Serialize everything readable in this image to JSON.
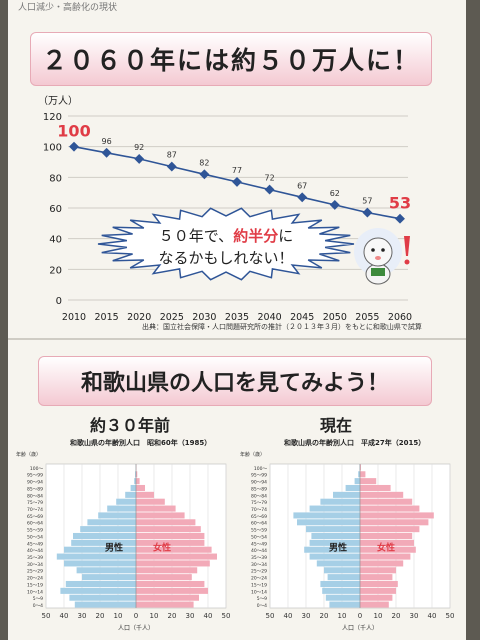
{
  "header_scrap": "人口減少・高齢化の現状",
  "title": "２０６０年には約５０万人に！",
  "callout": {
    "line1": "５０年で、",
    "highlight": "約半分",
    "line1_end": "に",
    "line2": "なるかもしれない！"
  },
  "source": "出典：国立社会保障・人口問題研究所の推計（２０１３年３月）をもとに和歌山県で試算",
  "title2": "和歌山県の人口を見てみよう！",
  "subtitle_left": "約３０年前",
  "subtitle_right": "現在",
  "colors": {
    "line": "#2f5597",
    "highlight": "#e03c46",
    "male": "#a6cfe6",
    "female": "#f2aab8"
  },
  "chart_data": [
    {
      "type": "line",
      "ylabel": "（万人）",
      "ylim": [
        0,
        120
      ],
      "yticks": [
        0,
        20,
        40,
        60,
        80,
        100,
        120
      ],
      "x": [
        2010,
        2015,
        2020,
        2025,
        2030,
        2035,
        2040,
        2045,
        2050,
        2055,
        2060
      ],
      "series": [
        {
          "values": [
            100,
            96,
            92,
            87,
            82,
            77,
            72,
            67,
            62,
            57,
            53
          ]
        }
      ],
      "grid": true
    },
    {
      "type": "bar",
      "title": "和歌山県の年齢別人口　昭和60年（1985）",
      "ylabel": "年齢（歳）",
      "xlabel": "人口（千人）",
      "xlim": [
        -50,
        50
      ],
      "xticks": [
        50,
        40,
        30,
        20,
        10,
        0,
        10,
        20,
        30,
        40,
        50
      ],
      "categories": [
        "0～4",
        "5～9",
        "10～14",
        "15～19",
        "20～24",
        "25～29",
        "30～34",
        "35～39",
        "40～44",
        "45～49",
        "50～54",
        "55～59",
        "60～64",
        "65～69",
        "70～74",
        "75～79",
        "80～84",
        "85～89",
        "90～94",
        "95～99",
        "100～"
      ],
      "series": [
        {
          "name": "男性",
          "values": [
            34,
            37,
            42,
            39,
            30,
            33,
            40,
            44,
            40,
            36,
            35,
            31,
            27,
            21,
            16,
            11,
            6,
            3,
            1,
            0.5,
            0.1
          ]
        },
        {
          "name": "女性",
          "values": [
            32,
            35,
            40,
            38,
            31,
            34,
            41,
            45,
            42,
            38,
            38,
            36,
            33,
            27,
            22,
            16,
            10,
            5,
            2,
            0.7,
            0.2
          ]
        }
      ]
    },
    {
      "type": "bar",
      "title": "和歌山県の年齢別人口　平成27年（2015）",
      "ylabel": "年齢（歳）",
      "xlabel": "人口（千人）",
      "xlim": [
        -50,
        50
      ],
      "xticks": [
        50,
        40,
        30,
        20,
        10,
        0,
        10,
        20,
        30,
        40,
        50
      ],
      "categories": [
        "0～4",
        "5～9",
        "10～14",
        "15～19",
        "20～24",
        "25～29",
        "30～34",
        "35～39",
        "40～44",
        "45～49",
        "50～54",
        "55～59",
        "60～64",
        "65～69",
        "70～74",
        "75～79",
        "80～84",
        "85～89",
        "90～94",
        "95～99",
        "100～"
      ],
      "series": [
        {
          "name": "男性",
          "values": [
            17,
            19,
            21,
            22,
            18,
            20,
            24,
            28,
            31,
            28,
            27,
            30,
            35,
            37,
            28,
            22,
            15,
            8,
            3,
            1,
            0.2
          ]
        },
        {
          "name": "女性",
          "values": [
            16,
            18,
            20,
            21,
            18,
            20,
            24,
            28,
            31,
            30,
            29,
            33,
            38,
            41,
            33,
            29,
            24,
            17,
            9,
            3,
            0.5
          ]
        }
      ]
    }
  ]
}
